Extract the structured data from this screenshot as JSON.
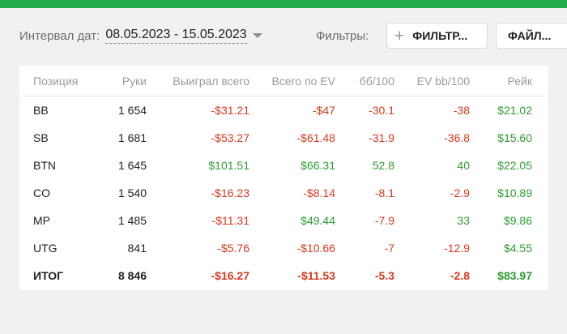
{
  "toolbar": {
    "interval_label": "Интервал дат:",
    "date_range": "08.05.2023 - 15.05.2023",
    "filters_label": "Фильтры:",
    "filter_button": "ФИЛЬТР...",
    "files_button": "ФАЙЛ..."
  },
  "table": {
    "headers": [
      "Позиция",
      "Руки",
      "Выиграл всего",
      "Всего по EV",
      "бб/100",
      "EV bb/100",
      "Рейк"
    ],
    "rows": [
      {
        "cells": [
          "BB",
          "1 654",
          "-$31.21",
          "-$47",
          "-30.1",
          "-38",
          "$21.02"
        ],
        "signs": [
          "neu",
          "neu",
          "neg",
          "neg",
          "neg",
          "neg",
          "pos"
        ]
      },
      {
        "cells": [
          "SB",
          "1 681",
          "-$53.27",
          "-$61.48",
          "-31.9",
          "-36.8",
          "$15.60"
        ],
        "signs": [
          "neu",
          "neu",
          "neg",
          "neg",
          "neg",
          "neg",
          "pos"
        ]
      },
      {
        "cells": [
          "BTN",
          "1 645",
          "$101.51",
          "$66.31",
          "52.8",
          "40",
          "$22.05"
        ],
        "signs": [
          "neu",
          "neu",
          "pos",
          "pos",
          "pos",
          "pos",
          "pos"
        ]
      },
      {
        "cells": [
          "CO",
          "1 540",
          "-$16.23",
          "-$8.14",
          "-8.1",
          "-2.9",
          "$10.89"
        ],
        "signs": [
          "neu",
          "neu",
          "neg",
          "neg",
          "neg",
          "neg",
          "pos"
        ]
      },
      {
        "cells": [
          "MP",
          "1 485",
          "-$11.31",
          "$49.44",
          "-7.9",
          "33",
          "$9.86"
        ],
        "signs": [
          "neu",
          "neu",
          "neg",
          "pos",
          "neg",
          "pos",
          "pos"
        ]
      },
      {
        "cells": [
          "UTG",
          "841",
          "-$5.76",
          "-$10.66",
          "-7",
          "-12.9",
          "$4.55"
        ],
        "signs": [
          "neu",
          "neu",
          "neg",
          "neg",
          "neg",
          "neg",
          "pos"
        ]
      }
    ],
    "total": {
      "cells": [
        "ИТОГ",
        "8 846",
        "-$16.27",
        "-$11.53",
        "-5.3",
        "-2.8",
        "$83.97"
      ],
      "signs": [
        "neu",
        "neu",
        "neg",
        "neg",
        "neg",
        "neg",
        "pos"
      ]
    }
  },
  "colors": {
    "accent": "#22aa4d",
    "negative": "#d9391f",
    "positive": "#2e9d32"
  }
}
